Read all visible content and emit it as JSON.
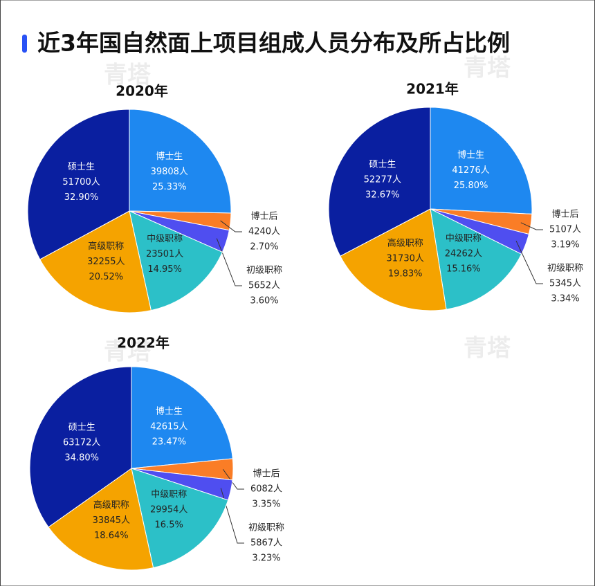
{
  "title": "近3年国自然面上项目组成人员分布及所占比例",
  "watermark": "青塔",
  "chart_data": [
    {
      "type": "pie",
      "title": "2020年",
      "categories": [
        "博士生",
        "博士后",
        "初级职称",
        "中级职称",
        "高级职称",
        "硕士生"
      ],
      "values": [
        39808,
        4240,
        5652,
        23501,
        32255,
        51700
      ],
      "value_labels": [
        "39808人",
        "4240人",
        "5652人",
        "23501人",
        "32255人",
        "51700人"
      ],
      "percent_labels": [
        "25.33%",
        "2.70%",
        "3.60%",
        "14.95%",
        "20.52%",
        "32.90%"
      ],
      "colors": [
        "#1e88f0",
        "#fa7d26",
        "#4f4ef0",
        "#2cc0c8",
        "#f5a300",
        "#0a1fa0"
      ]
    },
    {
      "type": "pie",
      "title": "2021年",
      "categories": [
        "博士生",
        "博士后",
        "初级职称",
        "中级职称",
        "高级职称",
        "硕士生"
      ],
      "values": [
        41276,
        5107,
        5345,
        24262,
        31730,
        52277
      ],
      "value_labels": [
        "41276人",
        "5107人",
        "5345人",
        "24262人",
        "31730人",
        "52277人"
      ],
      "percent_labels": [
        "25.80%",
        "3.19%",
        "3.34%",
        "15.16%",
        "19.83%",
        "32.67%"
      ],
      "colors": [
        "#1e88f0",
        "#fa7d26",
        "#4f4ef0",
        "#2cc0c8",
        "#f5a300",
        "#0a1fa0"
      ]
    },
    {
      "type": "pie",
      "title": "2022年",
      "categories": [
        "博士生",
        "博士后",
        "初级职称",
        "中级职称",
        "高级职称",
        "硕士生"
      ],
      "values": [
        42615,
        6082,
        5867,
        29954,
        33845,
        63172
      ],
      "value_labels": [
        "42615人",
        "6082人",
        "5867人",
        "29954人",
        "33845人",
        "63172人"
      ],
      "percent_labels": [
        "23.47%",
        "3.35%",
        "3.23%",
        "16.5%",
        "18.64%",
        "34.80%"
      ],
      "colors": [
        "#1e88f0",
        "#fa7d26",
        "#4f4ef0",
        "#2cc0c8",
        "#f5a300",
        "#0a1fa0"
      ]
    }
  ]
}
